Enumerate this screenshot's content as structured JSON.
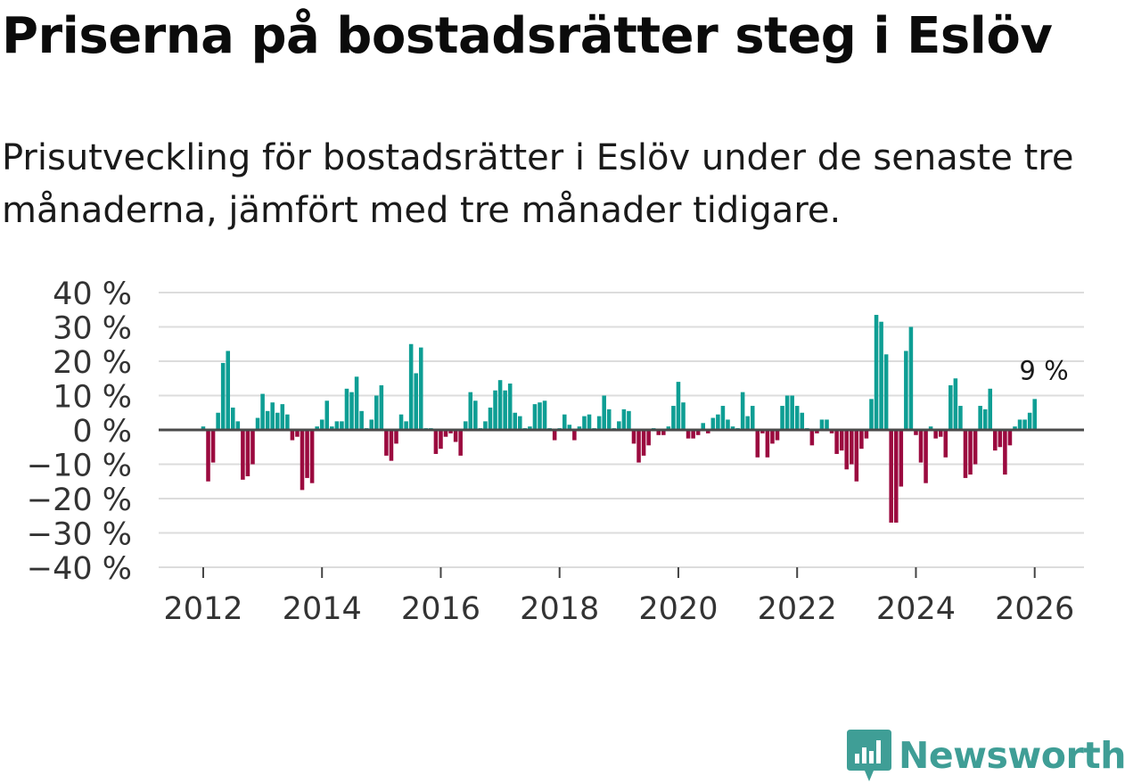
{
  "title": "Priserna på bostadsrätter steg i Eslöv",
  "subtitle": "Prisutveckling för bostadsrätter i Eslöv under de senaste tre månaderna, jämfört med tre månader tidigare.",
  "brand": {
    "name": "Newsworthy",
    "color": "#3f9e96"
  },
  "colors": {
    "positive": "#0e9e94",
    "negative": "#9b0a3f",
    "grid": "#dcdcdc",
    "zero_line": "#4a4a4a"
  },
  "chart_data": {
    "type": "bar",
    "unit": "%",
    "ylim": [
      -40,
      40
    ],
    "yticks": [
      40,
      30,
      20,
      10,
      0,
      -10,
      -20,
      -30,
      -40
    ],
    "ytick_labels": [
      "40 %",
      "30 %",
      "20 %",
      "10 %",
      "0 %",
      "−10 %",
      "−20 %",
      "−30 %",
      "−40 %"
    ],
    "xlim": [
      2011.25,
      2026.83
    ],
    "xticks": [
      2012,
      2014,
      2016,
      2018,
      2020,
      2022,
      2024,
      2026
    ],
    "xtick_labels": [
      "2012",
      "2014",
      "2016",
      "2018",
      "2020",
      "2022",
      "2024",
      "2026"
    ],
    "annotation": {
      "text": "9 %",
      "x": 2026.08,
      "value": 9
    },
    "start_year": 2012,
    "start_month": 0,
    "values": [
      1,
      -15,
      -9.5,
      5,
      19.5,
      23,
      6.5,
      2.5,
      -14.5,
      -13.5,
      -10,
      3.5,
      10.5,
      5.5,
      8,
      5,
      7.5,
      4.5,
      -3,
      -2,
      -17.5,
      -14,
      -15.5,
      1,
      3,
      8.5,
      1,
      2.5,
      2.5,
      12,
      11,
      15.5,
      5.5,
      0.5,
      3,
      10,
      13,
      -7.5,
      -9,
      -4,
      4.5,
      2.5,
      25,
      16.5,
      24,
      0.5,
      0.5,
      -7,
      -5.5,
      -2,
      -1,
      -3.5,
      -7.5,
      2.5,
      11,
      8.5,
      0.5,
      2.5,
      6.5,
      11.5,
      14.5,
      11.5,
      13.5,
      5,
      4,
      0.5,
      1,
      7.5,
      8,
      8.5,
      0.5,
      -3,
      0.5,
      4.5,
      1.5,
      -3,
      1,
      4,
      4.5,
      0.5,
      4,
      10,
      6,
      0.5,
      2.5,
      6,
      5.5,
      -4,
      -9.5,
      -7.5,
      -4.5,
      0.5,
      -1.5,
      -1.5,
      1,
      7,
      14,
      8,
      -2.5,
      -2.5,
      -1.5,
      2,
      -1,
      3.5,
      4.5,
      7,
      3,
      1,
      0.5,
      11,
      4,
      7,
      -8,
      -1,
      -8,
      -4,
      -3,
      7,
      10,
      10,
      7,
      5,
      0.5,
      -4.5,
      -1,
      3,
      3,
      -1,
      -7,
      -6,
      -11.5,
      -10,
      -15,
      -5.5,
      -2.5,
      9,
      33.5,
      31.5,
      22,
      -27,
      -27,
      -16.5,
      23,
      30,
      -1.5,
      -9.5,
      -15.5,
      1,
      -2.5,
      -2,
      -8,
      13,
      15,
      7,
      -14,
      -13,
      -10,
      7,
      6,
      12,
      -6,
      -5,
      -13,
      -4.5,
      1,
      3,
      3,
      5,
      9
    ]
  }
}
